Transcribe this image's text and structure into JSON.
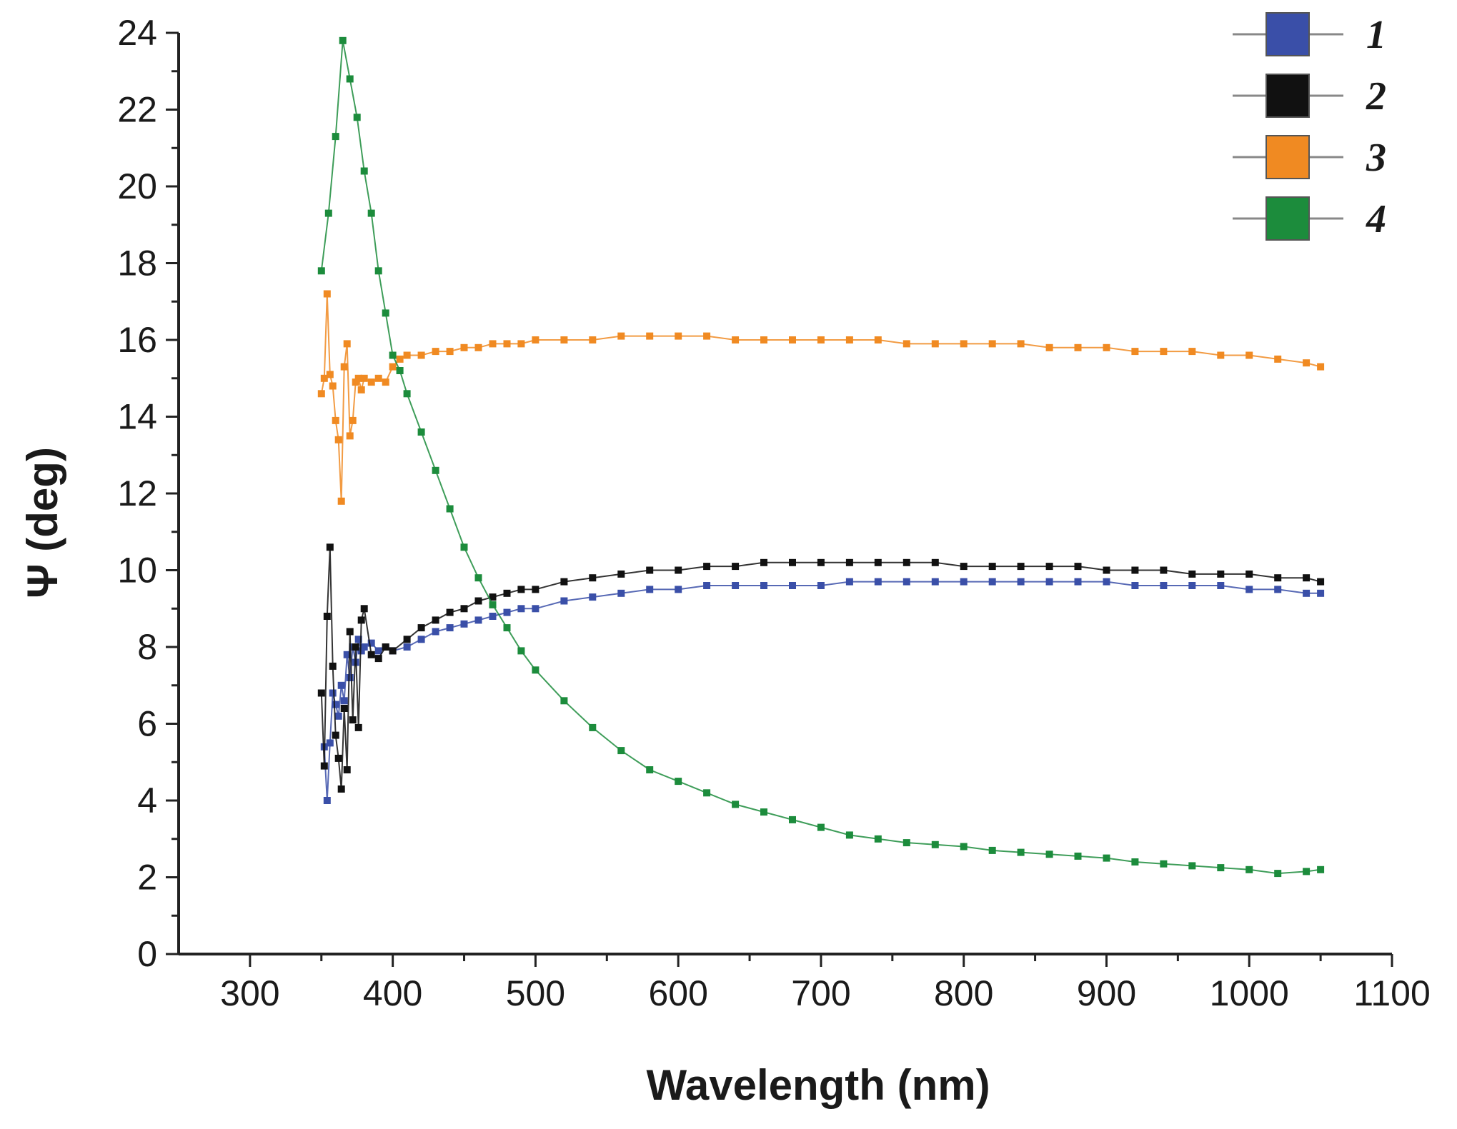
{
  "chart_data": {
    "type": "scatter",
    "title": "",
    "xlabel": "Wavelength (nm)",
    "ylabel": "Ψ (deg)",
    "xlim": [
      250,
      1100
    ],
    "ylim": [
      0,
      24
    ],
    "x_ticks": [
      300,
      400,
      500,
      600,
      700,
      800,
      900,
      1000,
      1100
    ],
    "y_ticks": [
      0,
      2,
      4,
      6,
      8,
      10,
      12,
      14,
      16,
      18,
      20,
      22,
      24
    ],
    "x_tick_labels": [
      "300",
      "400",
      "500",
      "600",
      "700",
      "800",
      "900",
      "1000",
      "1100"
    ],
    "y_tick_labels": [
      "0",
      "2",
      "4",
      "6",
      "8",
      "10",
      "12",
      "14",
      "16",
      "18",
      "20",
      "22",
      "24"
    ],
    "legend_position": "top-right",
    "series": [
      {
        "name": "1",
        "color": "#3a4fa8",
        "x": [
          352,
          354,
          356,
          358,
          360,
          362,
          364,
          366,
          368,
          370,
          372,
          374,
          376,
          378,
          380,
          385,
          390,
          395,
          400,
          410,
          420,
          430,
          440,
          450,
          460,
          470,
          480,
          490,
          500,
          520,
          540,
          560,
          580,
          600,
          620,
          640,
          660,
          680,
          700,
          720,
          740,
          760,
          780,
          800,
          820,
          840,
          860,
          880,
          900,
          920,
          940,
          960,
          980,
          1000,
          1020,
          1040,
          1050
        ],
        "values": [
          5.4,
          4.0,
          5.5,
          6.8,
          6.5,
          6.2,
          7.0,
          6.6,
          7.8,
          7.2,
          8.0,
          7.6,
          8.2,
          7.9,
          8.0,
          8.1,
          7.9,
          8.0,
          7.9,
          8.0,
          8.2,
          8.4,
          8.5,
          8.6,
          8.7,
          8.8,
          8.9,
          9.0,
          9.0,
          9.2,
          9.3,
          9.4,
          9.5,
          9.5,
          9.6,
          9.6,
          9.6,
          9.6,
          9.6,
          9.7,
          9.7,
          9.7,
          9.7,
          9.7,
          9.7,
          9.7,
          9.7,
          9.7,
          9.7,
          9.6,
          9.6,
          9.6,
          9.6,
          9.5,
          9.5,
          9.4,
          9.4
        ]
      },
      {
        "name": "2",
        "color": "#111111",
        "x": [
          350,
          352,
          354,
          356,
          358,
          360,
          362,
          364,
          366,
          368,
          370,
          372,
          374,
          376,
          378,
          380,
          385,
          390,
          395,
          400,
          410,
          420,
          430,
          440,
          450,
          460,
          470,
          480,
          490,
          500,
          520,
          540,
          560,
          580,
          600,
          620,
          640,
          660,
          680,
          700,
          720,
          740,
          760,
          780,
          800,
          820,
          840,
          860,
          880,
          900,
          920,
          940,
          960,
          980,
          1000,
          1020,
          1040,
          1050
        ],
        "values": [
          6.8,
          4.9,
          8.8,
          10.6,
          7.5,
          5.7,
          5.1,
          4.3,
          6.4,
          4.8,
          8.4,
          6.1,
          8.0,
          5.9,
          8.7,
          9.0,
          7.8,
          7.7,
          8.0,
          7.9,
          8.2,
          8.5,
          8.7,
          8.9,
          9.0,
          9.2,
          9.3,
          9.4,
          9.5,
          9.5,
          9.7,
          9.8,
          9.9,
          10.0,
          10.0,
          10.1,
          10.1,
          10.2,
          10.2,
          10.2,
          10.2,
          10.2,
          10.2,
          10.2,
          10.1,
          10.1,
          10.1,
          10.1,
          10.1,
          10.0,
          10.0,
          10.0,
          9.9,
          9.9,
          9.9,
          9.8,
          9.8,
          9.7
        ]
      },
      {
        "name": "3",
        "color": "#f08a22",
        "x": [
          350,
          352,
          354,
          356,
          358,
          360,
          362,
          364,
          366,
          368,
          370,
          372,
          374,
          376,
          378,
          380,
          385,
          390,
          395,
          400,
          405,
          410,
          420,
          430,
          440,
          450,
          460,
          470,
          480,
          490,
          500,
          520,
          540,
          560,
          580,
          600,
          620,
          640,
          660,
          680,
          700,
          720,
          740,
          760,
          780,
          800,
          820,
          840,
          860,
          880,
          900,
          920,
          940,
          960,
          980,
          1000,
          1020,
          1040,
          1050
        ],
        "values": [
          14.6,
          15.0,
          17.2,
          15.1,
          14.8,
          13.9,
          13.4,
          11.8,
          15.3,
          15.9,
          13.5,
          13.9,
          14.9,
          15.0,
          14.7,
          15.0,
          14.9,
          15.0,
          14.9,
          15.3,
          15.5,
          15.6,
          15.6,
          15.7,
          15.7,
          15.8,
          15.8,
          15.9,
          15.9,
          15.9,
          16.0,
          16.0,
          16.0,
          16.1,
          16.1,
          16.1,
          16.1,
          16.0,
          16.0,
          16.0,
          16.0,
          16.0,
          16.0,
          15.9,
          15.9,
          15.9,
          15.9,
          15.9,
          15.8,
          15.8,
          15.8,
          15.7,
          15.7,
          15.7,
          15.6,
          15.6,
          15.5,
          15.4,
          15.3
        ]
      },
      {
        "name": "4",
        "color": "#1c8c3c",
        "x": [
          350,
          355,
          360,
          365,
          370,
          375,
          380,
          385,
          390,
          395,
          400,
          405,
          410,
          420,
          430,
          440,
          450,
          460,
          470,
          480,
          490,
          500,
          520,
          540,
          560,
          580,
          600,
          620,
          640,
          660,
          680,
          700,
          720,
          740,
          760,
          780,
          800,
          820,
          840,
          860,
          880,
          900,
          920,
          940,
          960,
          980,
          1000,
          1020,
          1040,
          1050
        ],
        "values": [
          17.8,
          19.3,
          21.3,
          23.8,
          22.8,
          21.8,
          20.4,
          19.3,
          17.8,
          16.7,
          15.6,
          15.2,
          14.6,
          13.6,
          12.6,
          11.6,
          10.6,
          9.8,
          9.1,
          8.5,
          7.9,
          7.4,
          6.6,
          5.9,
          5.3,
          4.8,
          4.5,
          4.2,
          3.9,
          3.7,
          3.5,
          3.3,
          3.1,
          3.0,
          2.9,
          2.85,
          2.8,
          2.7,
          2.65,
          2.6,
          2.55,
          2.5,
          2.4,
          2.35,
          2.3,
          2.25,
          2.2,
          2.1,
          2.15,
          2.2
        ]
      }
    ]
  }
}
